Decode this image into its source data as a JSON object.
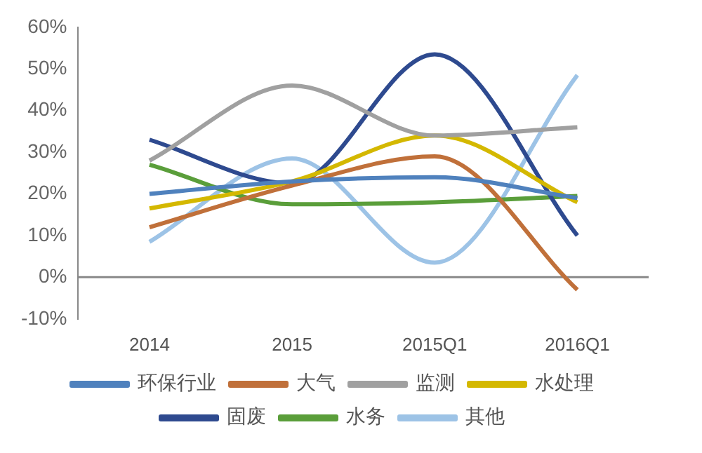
{
  "chart_data": {
    "type": "line",
    "categories": [
      "2014",
      "2015",
      "2015Q1",
      "2016Q1"
    ],
    "series": [
      {
        "name": "环保行业",
        "color": "#4f81bd",
        "values": [
          20,
          23,
          24,
          19
        ]
      },
      {
        "name": "大气",
        "color": "#c0703a",
        "values": [
          12,
          22,
          29,
          -3
        ]
      },
      {
        "name": "监测",
        "color": "#a0a0a0",
        "values": [
          28,
          46,
          34,
          36
        ]
      },
      {
        "name": "水处理",
        "color": "#d4b800",
        "values": [
          16.5,
          23,
          34,
          18
        ]
      },
      {
        "name": "固废",
        "color": "#2e4a8f",
        "values": [
          33,
          22.5,
          53.5,
          10
        ]
      },
      {
        "name": "水务",
        "color": "#5a9e3a",
        "values": [
          27,
          17.5,
          18,
          19.5
        ]
      },
      {
        "name": "其他",
        "color": "#9dc3e6",
        "values": [
          8.5,
          28.5,
          3.5,
          48.5
        ]
      }
    ],
    "ylim": [
      -10,
      60
    ],
    "yticks": [
      {
        "value": -10,
        "label": "-10%"
      },
      {
        "value": 0,
        "label": "0%"
      },
      {
        "value": 10,
        "label": "10%"
      },
      {
        "value": 20,
        "label": "20%"
      },
      {
        "value": 30,
        "label": "30%"
      },
      {
        "value": 40,
        "label": "40%"
      },
      {
        "value": 50,
        "label": "50%"
      },
      {
        "value": 60,
        "label": "60%"
      }
    ],
    "ref_lines": [
      {
        "axis": "y",
        "value": 0,
        "color": "#888888"
      }
    ],
    "grid": false,
    "legend": "bottom",
    "marker": "none",
    "line_style": "solid"
  }
}
